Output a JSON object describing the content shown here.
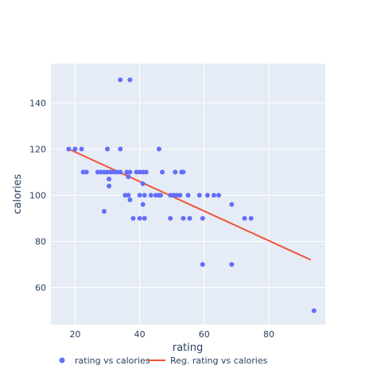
{
  "chart_data": {
    "type": "scatter",
    "xlabel": "rating",
    "ylabel": "calories",
    "xlim": [
      12.5,
      97.5
    ],
    "ylim": [
      44,
      157
    ],
    "xticks": [
      20,
      40,
      60,
      80
    ],
    "yticks": [
      60,
      80,
      100,
      120,
      140
    ],
    "grid": true,
    "legend_placement": "bottom",
    "colors": {
      "points": "#636efa",
      "line": "#ef553b",
      "plot_bg": "#e5ecf6",
      "grid": "#ffffff",
      "text": "#2a3f5f"
    },
    "series": [
      {
        "name": "rating vs calories",
        "type": "scatter",
        "points": [
          [
            18,
            120
          ],
          [
            20,
            120
          ],
          [
            22,
            120
          ],
          [
            22.5,
            110
          ],
          [
            23.5,
            110
          ],
          [
            27,
            110
          ],
          [
            28,
            110
          ],
          [
            29,
            110
          ],
          [
            30,
            110
          ],
          [
            31,
            110
          ],
          [
            32,
            110
          ],
          [
            33,
            110
          ],
          [
            34,
            110
          ],
          [
            36,
            110
          ],
          [
            37,
            110
          ],
          [
            39,
            110
          ],
          [
            40,
            110
          ],
          [
            41,
            110
          ],
          [
            42,
            110
          ],
          [
            47,
            110
          ],
          [
            51,
            110
          ],
          [
            53,
            110
          ],
          [
            53.5,
            110
          ],
          [
            30,
            120
          ],
          [
            34,
            120
          ],
          [
            46,
            120
          ],
          [
            34,
            150
          ],
          [
            37,
            150
          ],
          [
            30.5,
            107
          ],
          [
            30.5,
            104
          ],
          [
            36.5,
            108
          ],
          [
            41,
            105
          ],
          [
            35.5,
            100
          ],
          [
            36.5,
            100
          ],
          [
            40,
            100
          ],
          [
            41.5,
            100
          ],
          [
            43.5,
            100
          ],
          [
            45,
            100
          ],
          [
            46,
            100
          ],
          [
            46.5,
            100
          ],
          [
            49.5,
            100
          ],
          [
            50.5,
            100
          ],
          [
            51.5,
            100
          ],
          [
            52.5,
            100
          ],
          [
            55,
            100
          ],
          [
            58.5,
            100
          ],
          [
            61,
            100
          ],
          [
            63,
            100
          ],
          [
            64.5,
            100
          ],
          [
            37,
            98
          ],
          [
            41,
            96
          ],
          [
            68.5,
            96
          ],
          [
            29,
            93
          ],
          [
            38,
            90
          ],
          [
            40,
            90
          ],
          [
            41.5,
            90
          ],
          [
            49.5,
            90
          ],
          [
            53.5,
            90
          ],
          [
            55.5,
            90
          ],
          [
            59.5,
            90
          ],
          [
            72.5,
            90
          ],
          [
            74.5,
            90
          ],
          [
            59.5,
            70
          ],
          [
            68.5,
            70
          ],
          [
            94,
            50
          ]
        ]
      },
      {
        "name": "Reg. rating vs calories",
        "type": "line",
        "points": [
          [
            18,
            120
          ],
          [
            93,
            72
          ]
        ]
      }
    ]
  }
}
